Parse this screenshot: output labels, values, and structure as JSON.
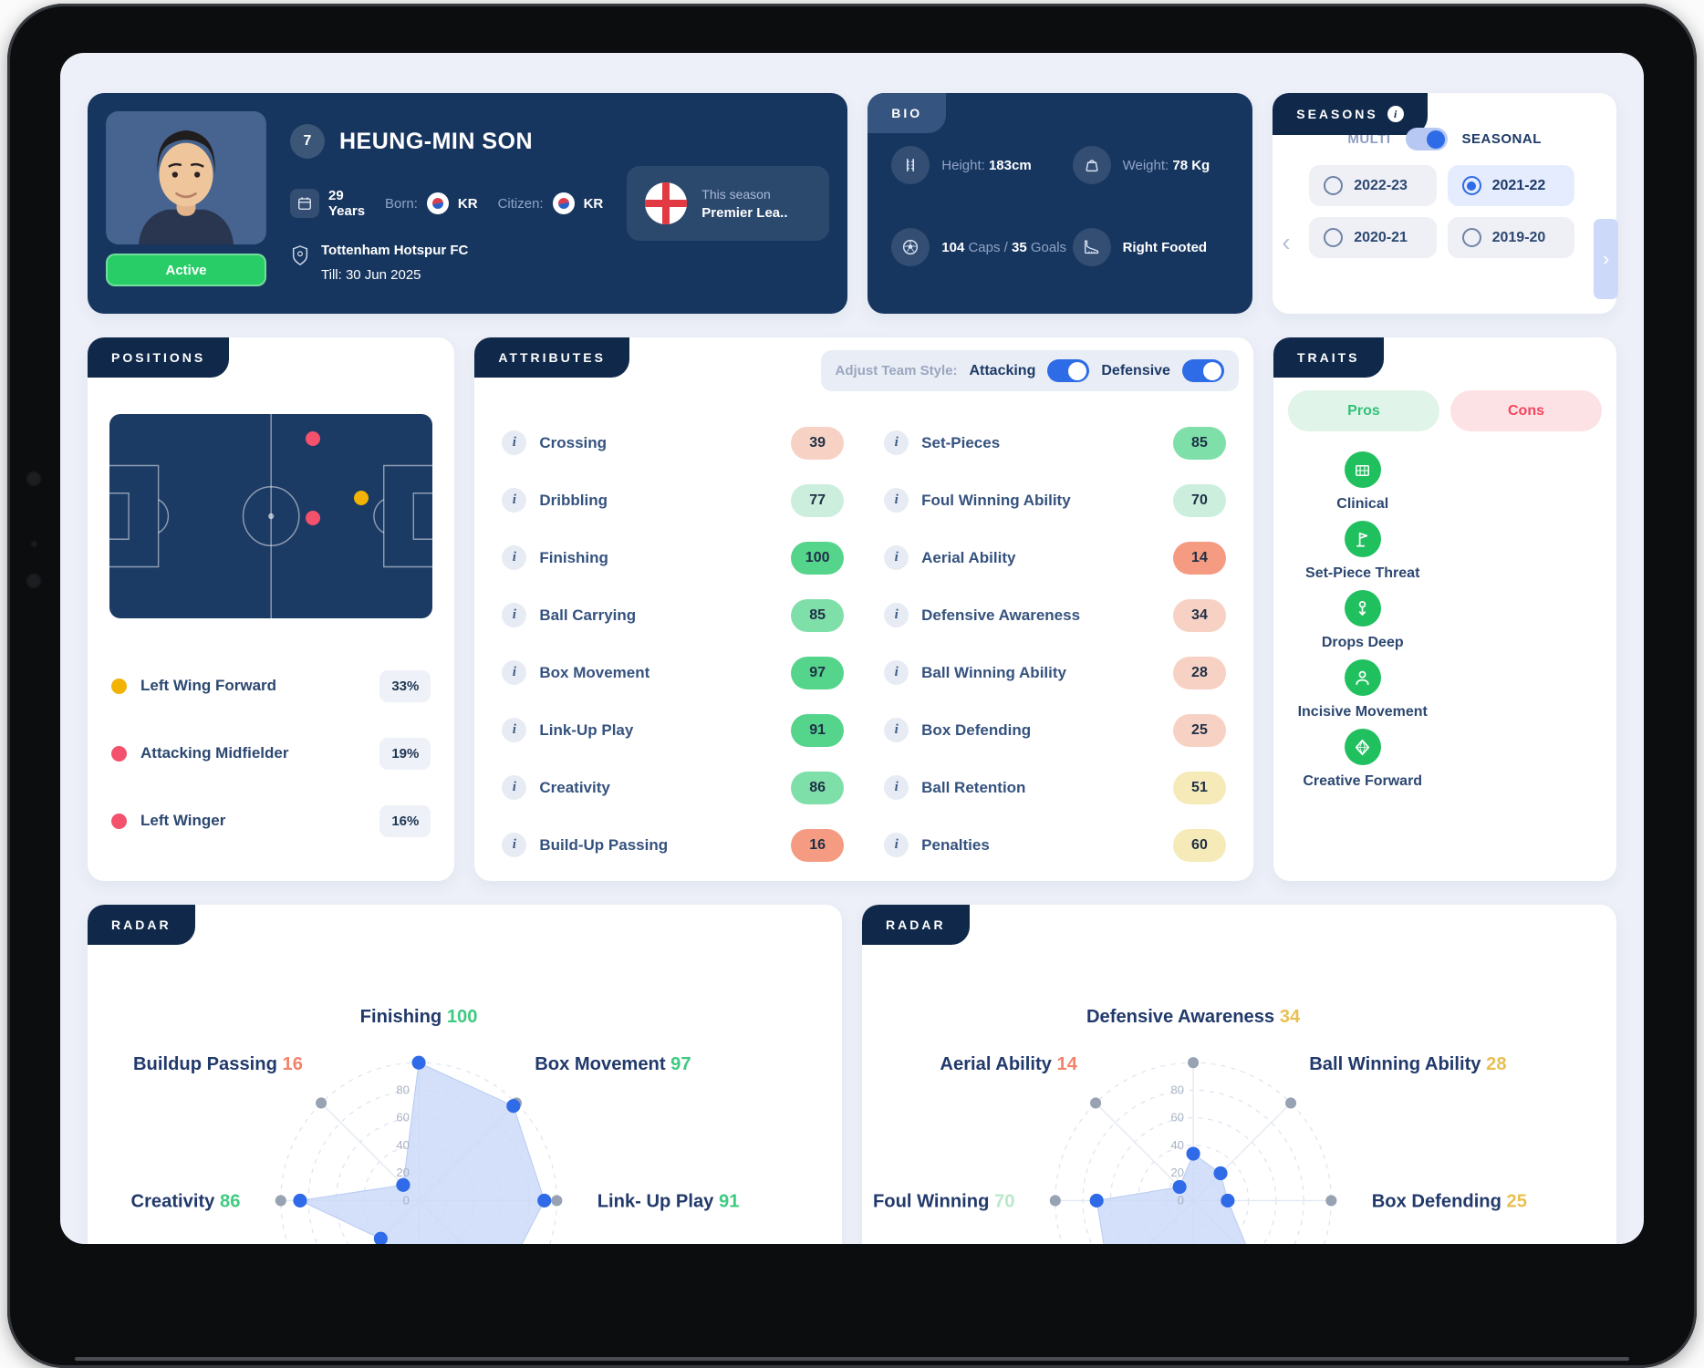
{
  "icons": {
    "info_glyph": "i",
    "prev_glyph": "‹",
    "next_glyph": "›"
  },
  "colors": {
    "accent_blue": "#2e6be6",
    "active_green": "#29cd68",
    "navy_card": "#17365f",
    "pros_green": "#34c077",
    "cons_red": "#f3455f"
  },
  "player": {
    "number": "7",
    "name": "HEUNG-MIN SON",
    "status": "Active",
    "age": "29 Years",
    "born_label": "Born:",
    "born_country": "KR",
    "citizen_label": "Citizen:",
    "citizen_country": "KR",
    "club": "Tottenham Hotspur FC",
    "contract": "Till: 30 Jun 2025",
    "season_note_line1": "This season",
    "season_note_line2": "Premier Lea.."
  },
  "bio": {
    "title": "BIO",
    "height_label": "Height:",
    "height_value": "183cm",
    "weight_label": "Weight:",
    "weight_value": "78 Kg",
    "caps_value": "104",
    "caps_word": "Caps /",
    "goals_value": "35",
    "goals_word": "Goals",
    "foot": "Right Footed"
  },
  "seasons": {
    "title": "SEASONS",
    "multi_label": "MULTI",
    "seasonal_label": "SEASONAL",
    "options": [
      {
        "label": "2022-23",
        "selected": false
      },
      {
        "label": "2021-22",
        "selected": true
      },
      {
        "label": "2020-21",
        "selected": false
      },
      {
        "label": "2019-20",
        "selected": false
      }
    ]
  },
  "positions": {
    "title": "POSITIONS",
    "legend": [
      {
        "label": "Left Wing Forward",
        "pct": "33%",
        "color": "#f2b306"
      },
      {
        "label": "Attacking Midfielder",
        "pct": "19%",
        "color": "#f4516c"
      },
      {
        "label": "Left Winger",
        "pct": "16%",
        "color": "#f4516c"
      }
    ],
    "markers": [
      {
        "x": 63,
        "y": 12,
        "color": "#f4516c"
      },
      {
        "x": 78,
        "y": 41,
        "color": "#f2b306"
      },
      {
        "x": 63,
        "y": 51,
        "color": "#f4516c"
      }
    ]
  },
  "attributes": {
    "title": "ATTRIBUTES",
    "adjust_label": "Adjust Team Style:",
    "toggle1_label": "Attacking",
    "toggle1_on": true,
    "toggle2_label": "Defensive",
    "toggle2_on": true,
    "left": [
      {
        "label": "Crossing",
        "value": 39,
        "tone": "salmon-light"
      },
      {
        "label": "Dribbling",
        "value": 77,
        "tone": "green-pale"
      },
      {
        "label": "Finishing",
        "value": 100,
        "tone": "green-strong"
      },
      {
        "label": "Ball Carrying",
        "value": 85,
        "tone": "green-mid"
      },
      {
        "label": "Box Movement",
        "value": 97,
        "tone": "green-strong"
      },
      {
        "label": "Link-Up Play",
        "value": 91,
        "tone": "green-strong"
      },
      {
        "label": "Creativity",
        "value": 86,
        "tone": "green-mid"
      },
      {
        "label": "Build-Up Passing",
        "value": 16,
        "tone": "salmon-strong"
      }
    ],
    "right": [
      {
        "label": "Set-Pieces",
        "value": 85,
        "tone": "green-mid"
      },
      {
        "label": "Foul Winning Ability",
        "value": 70,
        "tone": "green-pale"
      },
      {
        "label": "Aerial Ability",
        "value": 14,
        "tone": "salmon-strong"
      },
      {
        "label": "Defensive Awareness",
        "value": 34,
        "tone": "salmon-light"
      },
      {
        "label": "Ball Winning Ability",
        "value": 28,
        "tone": "salmon-light"
      },
      {
        "label": "Box Defending",
        "value": 25,
        "tone": "salmon-light"
      },
      {
        "label": "Ball Retention",
        "value": 51,
        "tone": "yellow"
      },
      {
        "label": "Penalties",
        "value": 60,
        "tone": "yellow"
      }
    ]
  },
  "traits": {
    "title": "TRAITS",
    "pros_label": "Pros",
    "cons_label": "Cons",
    "items": [
      {
        "label": "Clinical",
        "icon": "goal-net-icon"
      },
      {
        "label": "Set-Piece Threat",
        "icon": "corner-flag-icon"
      },
      {
        "label": "Drops Deep",
        "icon": "pin-drop-icon"
      },
      {
        "label": "Incisive Movement",
        "icon": "player-silhouette-icon"
      },
      {
        "label": "Creative Forward",
        "icon": "diamond-icon"
      }
    ]
  },
  "chart_data": [
    {
      "type": "radar",
      "card_title": "RADAR",
      "rmax": 100,
      "ticks": [
        0,
        20,
        40,
        60,
        80
      ],
      "grid": "dashed-circles",
      "legend_position": "none",
      "axes_clockwise_from_top": [
        {
          "label": "Finishing",
          "value": 100,
          "value_color": "#3ecb81",
          "label_visible": true
        },
        {
          "label": "Box Movement",
          "value": 97,
          "value_color": "#3ecb81",
          "label_visible": true
        },
        {
          "label": "Link- Up Play",
          "value": 91,
          "value_color": "#3ecb81",
          "label_visible": true
        },
        {
          "label": "Ball Carrying",
          "value": 85,
          "value_color": "",
          "label_visible": false
        },
        {
          "label": "Dribbling",
          "value": 77,
          "value_color": "",
          "label_visible": false
        },
        {
          "label": "Crossing",
          "value": 39,
          "value_color": "",
          "label_visible": false
        },
        {
          "label": "Creativity",
          "value": 86,
          "value_color": "#3ecb81",
          "label_visible": true
        },
        {
          "label": "Buildup Passing",
          "value": 16,
          "value_color": "#f4836b",
          "label_visible": true
        }
      ]
    },
    {
      "type": "radar",
      "card_title": "RADAR",
      "rmax": 100,
      "ticks": [
        0,
        20,
        40,
        60,
        80
      ],
      "grid": "dashed-circles",
      "legend_position": "none",
      "axes_clockwise_from_top": [
        {
          "label": "Defensive Awareness",
          "value": 34,
          "value_color": "#e8bf52",
          "label_visible": true
        },
        {
          "label": "Ball Winning Ability",
          "value": 28,
          "value_color": "#e8bf52",
          "label_visible": true
        },
        {
          "label": "Box Defending",
          "value": 25,
          "value_color": "#e8bf52",
          "label_visible": true
        },
        {
          "label": "Penalties",
          "value": 60,
          "value_color": "",
          "label_visible": false
        },
        {
          "label": "Ball Retention",
          "value": 51,
          "value_color": "",
          "label_visible": false
        },
        {
          "label": "Set-Pieces",
          "value": 85,
          "value_color": "",
          "label_visible": false
        },
        {
          "label": "Foul Winning",
          "value": 70,
          "value_color": "#b9e8cb",
          "label_visible": true
        },
        {
          "label": "Aerial Ability",
          "value": 14,
          "value_color": "#f4836b",
          "label_visible": true
        }
      ]
    }
  ]
}
